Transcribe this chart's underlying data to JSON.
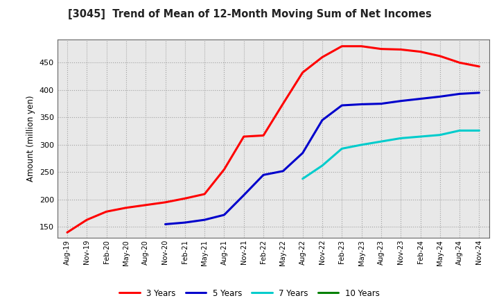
{
  "title": "[3045]  Trend of Mean of 12-Month Moving Sum of Net Incomes",
  "ylabel": "Amount (million yen)",
  "fig_bg": "#ffffff",
  "plot_bg": "#e8e8e8",
  "grid_color": "#999999",
  "x_labels": [
    "Aug-19",
    "Nov-19",
    "Feb-20",
    "May-20",
    "Aug-20",
    "Nov-20",
    "Feb-21",
    "May-21",
    "Aug-21",
    "Nov-21",
    "Feb-22",
    "May-22",
    "Aug-22",
    "Nov-22",
    "Feb-23",
    "May-23",
    "Aug-23",
    "Nov-23",
    "Feb-24",
    "May-24",
    "Aug-24",
    "Nov-24"
  ],
  "ylim": [
    130,
    492
  ],
  "yticks": [
    150,
    200,
    250,
    300,
    350,
    400,
    450
  ],
  "series": {
    "3 Years": {
      "color": "#ff0000",
      "data": [
        140,
        163,
        178,
        185,
        190,
        195,
        202,
        210,
        255,
        315,
        317,
        375,
        432,
        460,
        480,
        480,
        475,
        474,
        470,
        462,
        450,
        443
      ]
    },
    "5 Years": {
      "color": "#0000cc",
      "data": [
        null,
        null,
        null,
        null,
        null,
        155,
        158,
        163,
        172,
        208,
        245,
        252,
        285,
        345,
        372,
        374,
        375,
        380,
        384,
        388,
        393,
        395
      ]
    },
    "7 Years": {
      "color": "#00cccc",
      "data": [
        null,
        null,
        null,
        null,
        null,
        null,
        null,
        null,
        null,
        null,
        null,
        null,
        238,
        262,
        293,
        300,
        306,
        312,
        315,
        318,
        326,
        326
      ]
    },
    "10 Years": {
      "color": "#008000",
      "data": [
        null,
        null,
        null,
        null,
        null,
        null,
        null,
        null,
        null,
        null,
        null,
        null,
        null,
        null,
        null,
        null,
        null,
        null,
        null,
        null,
        null,
        null
      ]
    }
  },
  "legend_order": [
    "3 Years",
    "5 Years",
    "7 Years",
    "10 Years"
  ]
}
